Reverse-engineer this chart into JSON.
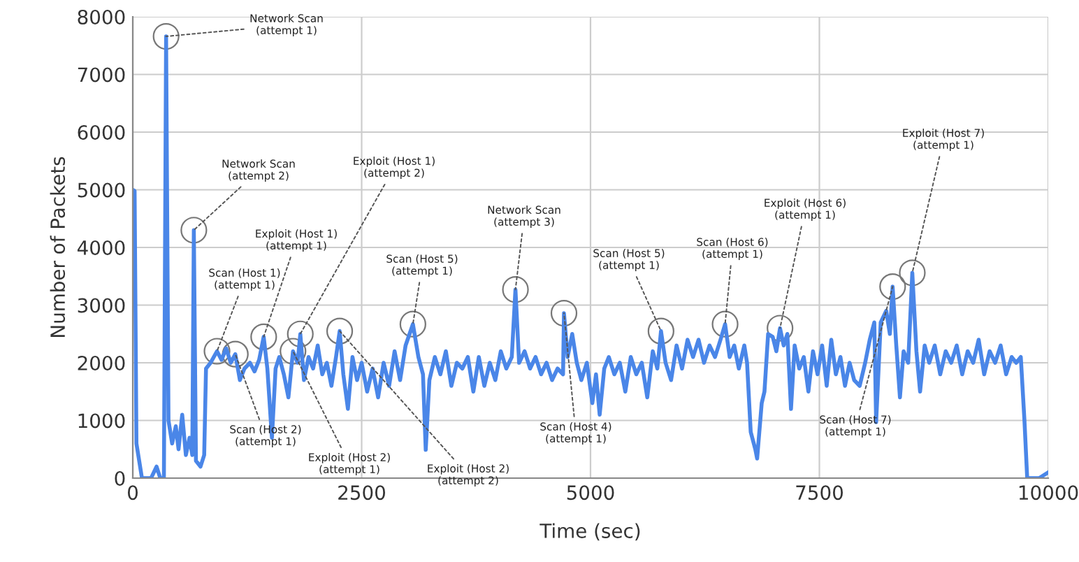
{
  "chart_data": {
    "type": "line",
    "xlabel": "Time (sec)",
    "ylabel": "Number of Packets",
    "xlim": [
      0,
      10000
    ],
    "ylim": [
      0,
      8000
    ],
    "xticks": [
      0,
      2500,
      5000,
      7500,
      10000
    ],
    "yticks": [
      0,
      1000,
      2000,
      3000,
      4000,
      5000,
      6000,
      7000,
      8000
    ],
    "grid": true,
    "legend": false,
    "marker": "none",
    "line_style": "solid",
    "series": [
      {
        "color": "#4a86e8",
        "x": [
          0,
          20,
          40,
          70,
          100,
          200,
          260,
          300,
          340,
          364,
          390,
          430,
          470,
          500,
          540,
          580,
          620,
          650,
          667,
          690,
          740,
          780,
          800,
          850,
          920,
          970,
          1020,
          1070,
          1120,
          1170,
          1220,
          1280,
          1330,
          1380,
          1430,
          1470,
          1520,
          1560,
          1600,
          1650,
          1700,
          1750,
          1800,
          1830,
          1870,
          1920,
          1970,
          2020,
          2070,
          2120,
          2170,
          2220,
          2260,
          2300,
          2350,
          2400,
          2450,
          2500,
          2560,
          2620,
          2680,
          2740,
          2800,
          2860,
          2920,
          2980,
          3060,
          3120,
          3170,
          3200,
          3240,
          3300,
          3360,
          3420,
          3480,
          3540,
          3600,
          3660,
          3720,
          3780,
          3840,
          3900,
          3960,
          4020,
          4080,
          4140,
          4180,
          4220,
          4280,
          4340,
          4400,
          4460,
          4520,
          4580,
          4640,
          4700,
          4710,
          4750,
          4800,
          4850,
          4900,
          4960,
          5020,
          5060,
          5100,
          5150,
          5200,
          5260,
          5320,
          5380,
          5440,
          5500,
          5560,
          5620,
          5680,
          5730,
          5770,
          5820,
          5880,
          5940,
          6000,
          6060,
          6120,
          6180,
          6240,
          6300,
          6360,
          6420,
          6470,
          6520,
          6570,
          6620,
          6680,
          6710,
          6750,
          6800,
          6820,
          6870,
          6900,
          6940,
          6990,
          7030,
          7070,
          7110,
          7150,
          7190,
          7230,
          7280,
          7330,
          7380,
          7430,
          7480,
          7530,
          7580,
          7630,
          7680,
          7730,
          7780,
          7830,
          7880,
          7940,
          8000,
          8050,
          8100,
          8120,
          8170,
          8230,
          8270,
          8300,
          8340,
          8380,
          8420,
          8470,
          8515,
          8560,
          8600,
          8650,
          8700,
          8760,
          8820,
          8880,
          8940,
          9000,
          9060,
          9120,
          9180,
          9240,
          9300,
          9360,
          9420,
          9480,
          9540,
          9600,
          9650,
          9700,
          9740,
          9770,
          9900,
          10000
        ],
        "values": [
          5000,
          4980,
          600,
          300,
          0,
          0,
          200,
          0,
          0,
          7660,
          1000,
          600,
          900,
          500,
          1100,
          400,
          700,
          400,
          4300,
          300,
          200,
          400,
          1900,
          2000,
          2200,
          2050,
          2250,
          2000,
          2150,
          1700,
          1900,
          2000,
          1850,
          2050,
          2450,
          1900,
          700,
          1900,
          2100,
          1800,
          1400,
          2200,
          2000,
          2500,
          1700,
          2100,
          1900,
          2300,
          1800,
          2000,
          1600,
          2100,
          2550,
          1800,
          1200,
          2100,
          1700,
          2000,
          1500,
          1900,
          1400,
          2000,
          1600,
          2200,
          1700,
          2300,
          2670,
          2100,
          1800,
          490,
          1700,
          2100,
          1800,
          2200,
          1600,
          2000,
          1900,
          2100,
          1500,
          2100,
          1600,
          2000,
          1700,
          2200,
          1900,
          2100,
          3270,
          2000,
          2200,
          1900,
          2100,
          1800,
          2000,
          1700,
          1900,
          1800,
          2860,
          2100,
          2500,
          2000,
          1700,
          2000,
          1300,
          1800,
          1100,
          1900,
          2100,
          1800,
          2000,
          1500,
          2100,
          1800,
          2000,
          1400,
          2200,
          1900,
          2550,
          2000,
          1700,
          2300,
          1900,
          2400,
          2100,
          2400,
          2000,
          2300,
          2100,
          2400,
          2670,
          2100,
          2300,
          1900,
          2300,
          2000,
          800,
          500,
          340,
          1300,
          1500,
          2500,
          2450,
          2200,
          2600,
          2300,
          2500,
          1200,
          2300,
          1900,
          2100,
          1500,
          2200,
          1800,
          2300,
          1600,
          2400,
          1800,
          2100,
          1600,
          2000,
          1700,
          1600,
          2000,
          2400,
          2700,
          970,
          2700,
          2900,
          2500,
          3320,
          2300,
          1400,
          2200,
          2000,
          3560,
          2200,
          1500,
          2300,
          2000,
          2300,
          1800,
          2200,
          2000,
          2300,
          1800,
          2200,
          2000,
          2400,
          1800,
          2200,
          2000,
          2300,
          1800,
          2100,
          2000,
          2100,
          1000,
          0,
          0,
          100
        ]
      }
    ],
    "annotations": [
      {
        "text": "Network Scan\n(attempt 1)",
        "x": 364,
        "y": 7660
      },
      {
        "text": "Network Scan\n(attempt 2)",
        "x": 667,
        "y": 4300
      },
      {
        "text": "Scan (Host 1)\n(attempt 1)",
        "x": 920,
        "y": 2200
      },
      {
        "text": "Exploit (Host 1)\n(attempt 1)",
        "x": 1430,
        "y": 2450
      },
      {
        "text": "Exploit (Host 1)\n(attempt 2)",
        "x": 1830,
        "y": 2500
      },
      {
        "text": "Scan (Host 5)\n(attempt 1)",
        "x": 3060,
        "y": 2670
      },
      {
        "text": "Network Scan\n(attempt 3)",
        "x": 4180,
        "y": 3270
      },
      {
        "text": "Scan (Host 5)\n(attempt 1)",
        "x": 5770,
        "y": 2550
      },
      {
        "text": "Scan (Host 6)\n(attempt 1)",
        "x": 6470,
        "y": 2670
      },
      {
        "text": "Exploit (Host 6)\n(attempt 1)",
        "x": 7070,
        "y": 2600
      },
      {
        "text": "Exploit (Host 7)\n(attempt 1)",
        "x": 8515,
        "y": 3560
      },
      {
        "text": "Scan (Host 2)\n(attempt 1)",
        "x": 1120,
        "y": 2150
      },
      {
        "text": "Exploit (Host 2)\n(attempt 1)",
        "x": 1750,
        "y": 2200
      },
      {
        "text": "Exploit (Host 2)\n(attempt 2)",
        "x": 2260,
        "y": 2550
      },
      {
        "text": "Scan (Host 4)\n(attempt 1)",
        "x": 4710,
        "y": 2860
      },
      {
        "text": "Scan (Host 7)\n(attempt 1)",
        "x": 8300,
        "y": 3320
      }
    ]
  }
}
